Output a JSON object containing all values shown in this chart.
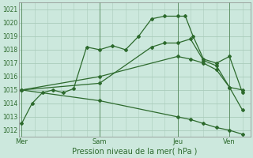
{
  "xlabel": "Pression niveau de la mer( hPa )",
  "bg_color": "#cce8dd",
  "grid_color": "#aaccbb",
  "line_color": "#2d6a2d",
  "ylim": [
    1011.5,
    1021.5
  ],
  "yticks": [
    1012,
    1013,
    1014,
    1015,
    1016,
    1017,
    1018,
    1019,
    1020,
    1021
  ],
  "xtick_labels": [
    "Mer",
    "Sam",
    "Jeu",
    "Ven"
  ],
  "xtick_positions": [
    0,
    3,
    6,
    8
  ],
  "xlim": [
    -0.1,
    8.8
  ],
  "series": [
    {
      "x": [
        0,
        0.4,
        0.8,
        1.2,
        1.6,
        2.0,
        2.5,
        3.0,
        3.5,
        4.0,
        4.5,
        5.0,
        5.5,
        6.0,
        6.3,
        6.6,
        7.0,
        7.5,
        8.0,
        8.5
      ],
      "y": [
        1012.5,
        1014.0,
        1014.8,
        1015.0,
        1014.8,
        1015.1,
        1018.2,
        1018.0,
        1018.3,
        1018.0,
        1019.0,
        1020.3,
        1020.5,
        1020.5,
        1020.5,
        1019.0,
        1017.3,
        1017.0,
        1017.5,
        1014.8
      ]
    },
    {
      "x": [
        0,
        3.0,
        5.0,
        5.5,
        6.0,
        6.5,
        7.0,
        7.5,
        8.0,
        8.5
      ],
      "y": [
        1015.0,
        1015.5,
        1018.2,
        1018.5,
        1018.5,
        1018.8,
        1017.2,
        1016.8,
        1015.2,
        1015.0
      ]
    },
    {
      "x": [
        0,
        3.0,
        6.0,
        6.5,
        7.0,
        7.5,
        8.0,
        8.5
      ],
      "y": [
        1015.0,
        1016.0,
        1017.5,
        1017.3,
        1017.0,
        1016.5,
        1015.2,
        1013.5
      ]
    },
    {
      "x": [
        0,
        3.0,
        6.0,
        6.5,
        7.0,
        7.5,
        8.0,
        8.5
      ],
      "y": [
        1015.0,
        1014.2,
        1013.0,
        1012.8,
        1012.5,
        1012.2,
        1012.0,
        1011.7
      ]
    }
  ]
}
